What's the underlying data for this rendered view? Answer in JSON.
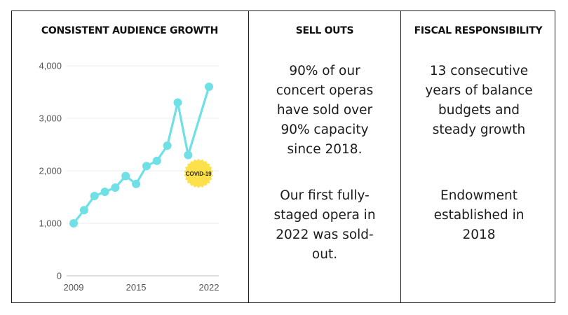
{
  "panels": {
    "growth": {
      "heading": "CONSISTENT AUDIENCE GROWTH"
    },
    "sellouts": {
      "heading": "SELL OUTS",
      "text1": "90% of our concert operas have sold over 90% capacity since 2018.",
      "text2": "Our first fully-staged opera in 2022 was sold-out."
    },
    "fiscal": {
      "heading": "FISCAL RESPONSIBILITY",
      "text1": "13 consecutive years of balance budgets and steady growth",
      "text2": "Endowment established in 2018"
    }
  },
  "chart_data": {
    "type": "line",
    "title": "CONSISTENT AUDIENCE GROWTH",
    "xlabel": "",
    "ylabel": "",
    "x": [
      2009,
      2010,
      2011,
      2012,
      2013,
      2014,
      2015,
      2016,
      2017,
      2018,
      2019,
      2020,
      2022
    ],
    "values": [
      1000,
      1250,
      1520,
      1600,
      1680,
      1900,
      1750,
      2090,
      2190,
      2480,
      3300,
      2300,
      3600
    ],
    "ylim": [
      0,
      4000
    ],
    "xlim": [
      2009,
      2022
    ],
    "yticks": [
      "0",
      "1,000",
      "2,000",
      "3,000",
      "4,000"
    ],
    "ytick_values": [
      0,
      1000,
      2000,
      3000,
      4000
    ],
    "xticks": [
      "2009",
      "2015",
      "2022"
    ],
    "xtick_values": [
      2009,
      2015,
      2022
    ],
    "line_color": "#6ee0e6",
    "grid": true,
    "annotation": {
      "text": "COVID-19",
      "x": 2021,
      "y": 1950,
      "color": "#fce14b"
    }
  }
}
